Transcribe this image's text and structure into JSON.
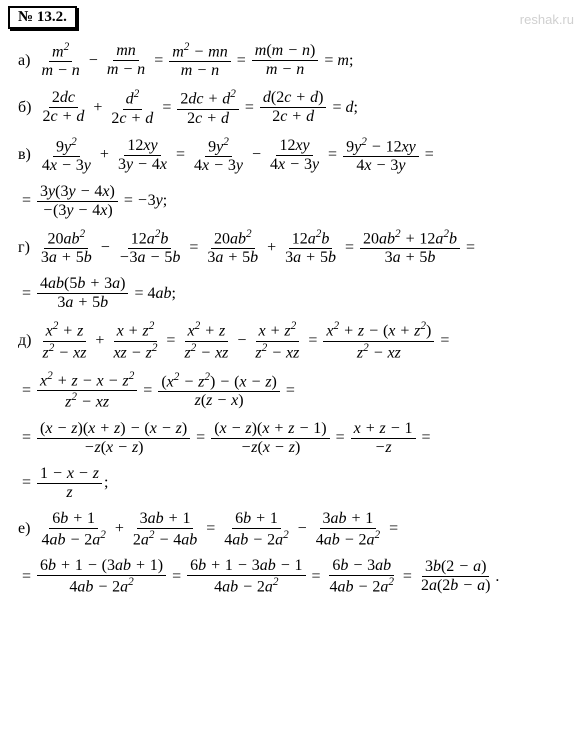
{
  "header": "№ 13.2.",
  "watermark": "reshak.ru",
  "labels": {
    "a": "а)",
    "b": "б)",
    "v": "в)",
    "g": "г)",
    "d": "д)",
    "e": "е)"
  },
  "style": {
    "font_family": "Times New Roman",
    "font_style": "italic",
    "font_size_pt": 12,
    "header_border_color": "#000000",
    "watermark_color": "#d0d0d0",
    "background": "#ffffff",
    "text_color": "#000000"
  }
}
